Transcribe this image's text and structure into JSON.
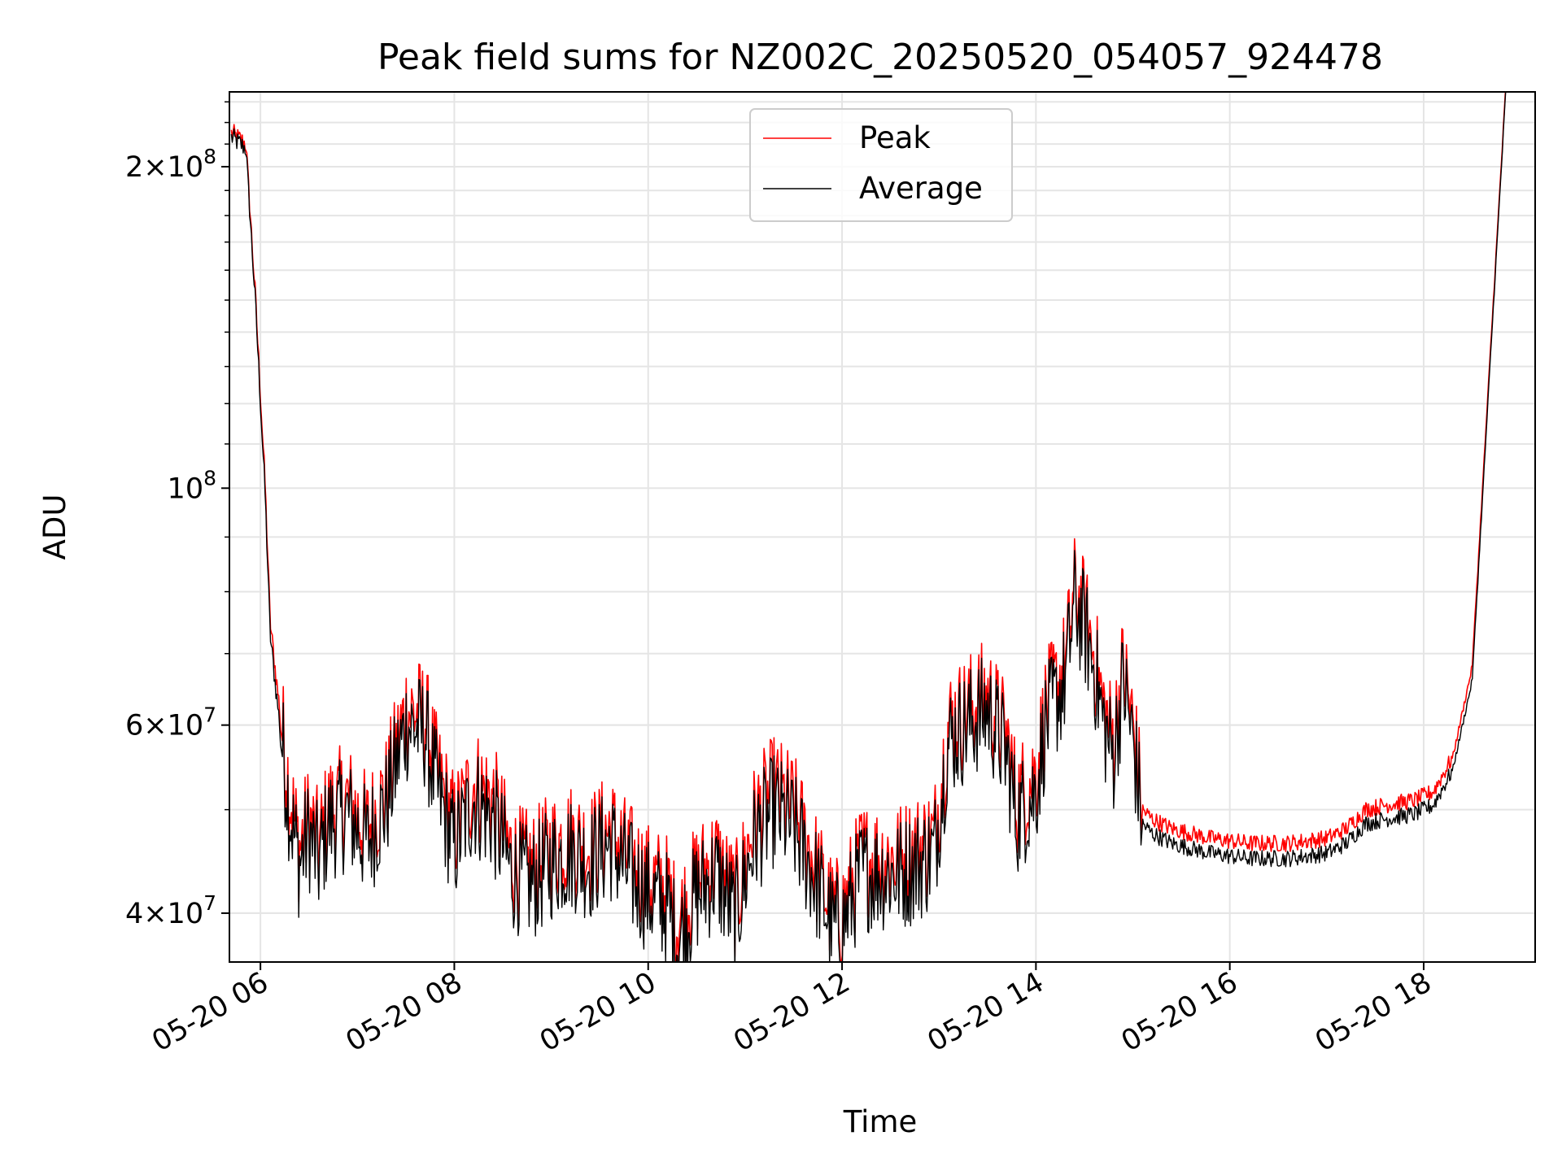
{
  "chart_data": {
    "type": "line",
    "title": "Peak field sums for NZ002C_20250520_054057_924478",
    "xlabel": "Time",
    "ylabel": "ADU",
    "yscale": "log",
    "ylim": [
      36000000,
      235000000
    ],
    "xlim_hours": [
      5.68,
      19.15
    ],
    "x_ticks": [
      "05-20 06",
      "05-20 08",
      "05-20 10",
      "05-20 12",
      "05-20 14",
      "05-20 16",
      "05-20 18"
    ],
    "y_ticks": [
      {
        "value": 40000000,
        "mant": "4",
        "exp": "7"
      },
      {
        "value": 60000000,
        "mant": "6",
        "exp": "7"
      },
      {
        "value": 100000000,
        "mant": "",
        "exp": "8"
      },
      {
        "value": 200000000,
        "mant": "2",
        "exp": "8"
      }
    ],
    "grid": true,
    "legend_position": "upper center",
    "x_hours": [
      5.7,
      5.85,
      5.95,
      6.05,
      6.1,
      6.15,
      6.2,
      6.3,
      6.4,
      6.5,
      6.6,
      6.7,
      6.9,
      7.1,
      7.3,
      7.5,
      7.7,
      7.8,
      8.0,
      8.2,
      8.4,
      8.6,
      8.8,
      9.0,
      9.2,
      9.4,
      9.6,
      9.8,
      10.0,
      10.2,
      10.3,
      10.5,
      10.7,
      10.9,
      11.1,
      11.3,
      11.5,
      11.7,
      11.9,
      12.0,
      12.2,
      12.4,
      12.6,
      12.8,
      12.95,
      13.1,
      13.3,
      13.5,
      13.7,
      13.8,
      14.0,
      14.1,
      14.3,
      14.4,
      14.5,
      14.6,
      14.7,
      14.8,
      14.9,
      15.0,
      15.1,
      15.2,
      15.4,
      15.8,
      16.2,
      16.6,
      17.0,
      17.2,
      17.4,
      17.6,
      17.9,
      18.1,
      18.3,
      18.5,
      18.7,
      18.85
    ],
    "series": [
      {
        "name": "Peak",
        "color": "#ff0000",
        "values": [
          215000000,
          210000000,
          150000000,
          100000000,
          75000000,
          68000000,
          62000000,
          52000000,
          46000000,
          49000000,
          46000000,
          50000000,
          51000000,
          48000000,
          52000000,
          62000000,
          61000000,
          55000000,
          48000000,
          53000000,
          51000000,
          45000000,
          44000000,
          46000000,
          47000000,
          46000000,
          48000000,
          45000000,
          43000000,
          42000000,
          39000000,
          43000000,
          45000000,
          41000000,
          49000000,
          52000000,
          50000000,
          45000000,
          40000000,
          40000000,
          45000000,
          45000000,
          45000000,
          46000000,
          47000000,
          60000000,
          62000000,
          64000000,
          58000000,
          51000000,
          54000000,
          62000000,
          68000000,
          80000000,
          76000000,
          70000000,
          62000000,
          58000000,
          68000000,
          60000000,
          50000000,
          49000000,
          48000000,
          47000000,
          46500000,
          46500000,
          47000000,
          48000000,
          50000000,
          50500000,
          51000000,
          52000000,
          56000000,
          68000000,
          140000000,
          240000000
        ]
      },
      {
        "name": "Average",
        "color": "#000000",
        "values": [
          213000000,
          208000000,
          148000000,
          98000000,
          73000000,
          66000000,
          60000000,
          50000000,
          44500000,
          47500000,
          44500000,
          48500000,
          49500000,
          46500000,
          50500000,
          60000000,
          59000000,
          53000000,
          46000000,
          51000000,
          49000000,
          43500000,
          42500000,
          44500000,
          45500000,
          44500000,
          46500000,
          43500000,
          41500000,
          40500000,
          37500000,
          41500000,
          43500000,
          39500000,
          47000000,
          50000000,
          48000000,
          43500000,
          38800000,
          38800000,
          43500000,
          43500000,
          43500000,
          44500000,
          45500000,
          58000000,
          60000000,
          62000000,
          56000000,
          49000000,
          52000000,
          60000000,
          66000000,
          78000000,
          74000000,
          68000000,
          60000000,
          56000000,
          66000000,
          58000000,
          48500000,
          47500000,
          46500000,
          45500000,
          45000000,
          45000000,
          45500000,
          46500000,
          48500000,
          49000000,
          49500000,
          50500000,
          54500000,
          66000000,
          138000000,
          238000000
        ]
      }
    ]
  }
}
